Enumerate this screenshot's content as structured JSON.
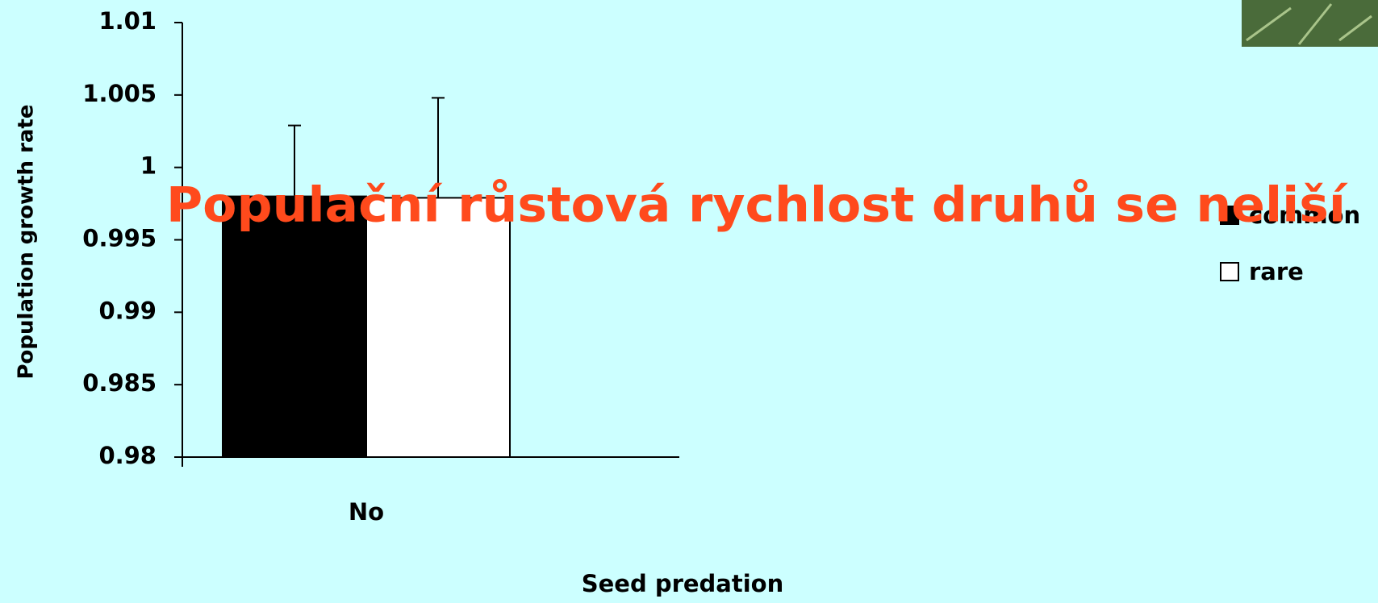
{
  "chart_data": {
    "type": "bar",
    "title": "Populační růstová rychlost druhů se neliší",
    "x_label": "Seed predation",
    "y_label": "Population growth rate",
    "categories": [
      "No"
    ],
    "series": [
      {
        "name": "common",
        "color": "#000000",
        "values": [
          0.998
        ],
        "errors": [
          0.0049
        ]
      },
      {
        "name": "rare",
        "color": "#ffffff",
        "values": [
          0.9979
        ],
        "errors": [
          0.0069
        ]
      }
    ],
    "ylim": [
      0.98,
      1.01
    ],
    "yticks": [
      0.98,
      0.985,
      0.99,
      0.995,
      1,
      1.005,
      1.01
    ]
  }
}
